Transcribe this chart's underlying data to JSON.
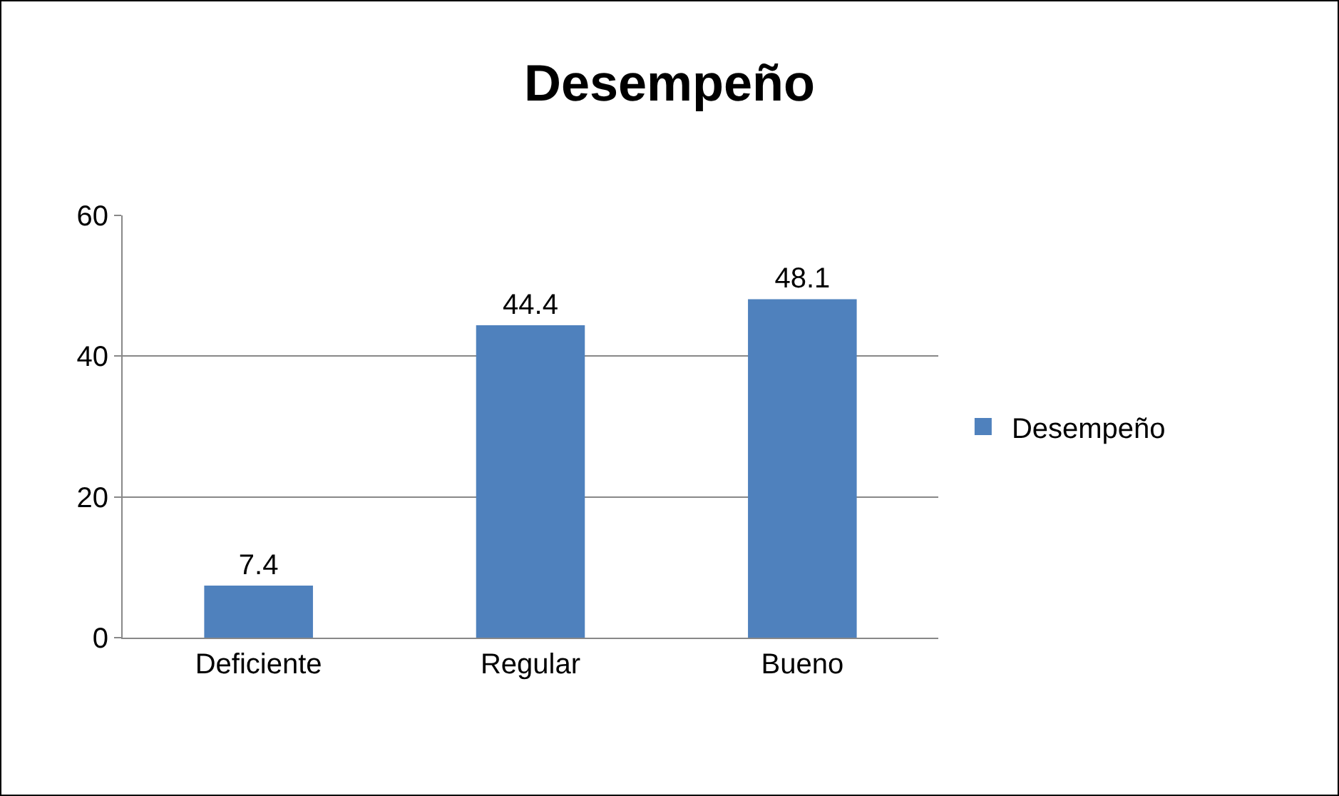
{
  "chart_data": {
    "type": "bar",
    "title": "Desempeño",
    "categories": [
      "Deficiente",
      "Regular",
      "Bueno"
    ],
    "series": [
      {
        "name": "Desempeño",
        "color": "#4f81bd",
        "values": [
          7.4,
          44.4,
          48.1
        ]
      }
    ],
    "ylim": [
      0,
      60
    ],
    "yticks": [
      0,
      20,
      40,
      60
    ],
    "grid": "y",
    "legend": "right",
    "data_labels": true
  }
}
